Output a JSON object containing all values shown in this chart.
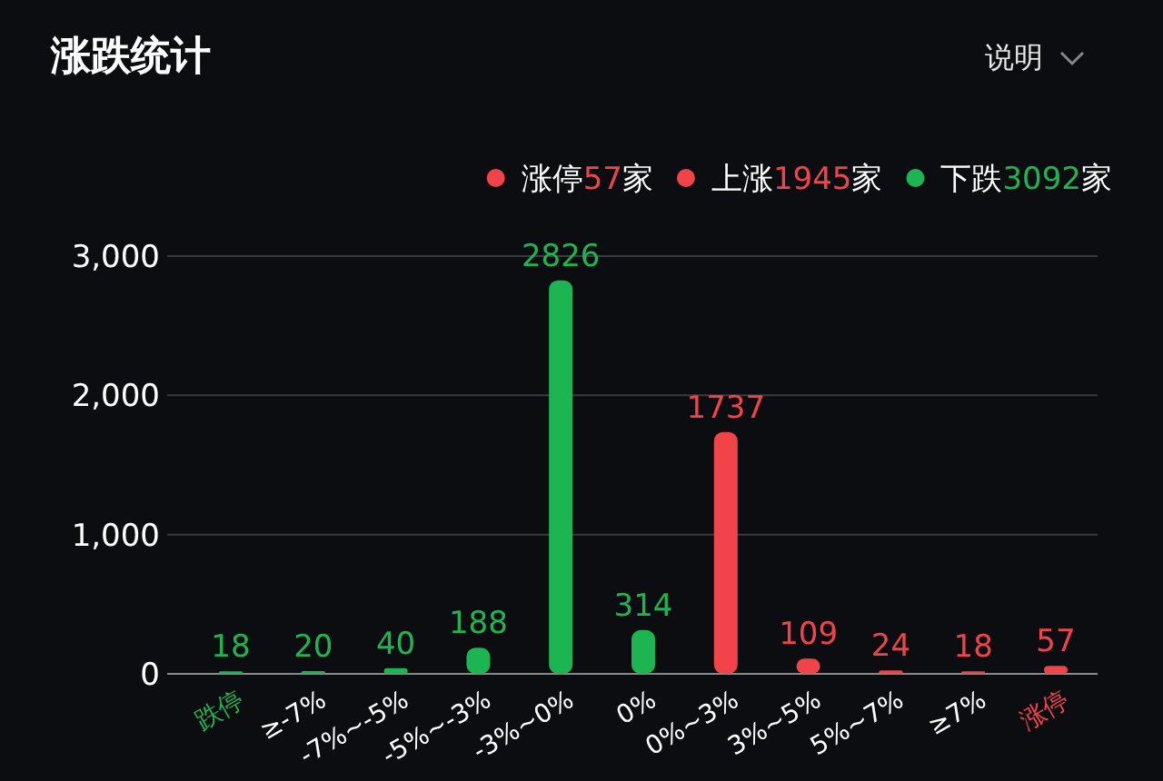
{
  "chart_data": {
    "type": "bar",
    "title": "涨跌统计",
    "annotations": [
      "说明"
    ],
    "categories": [
      "跌停",
      "≥-7%",
      "-7%~-5%",
      "-5%~-3%",
      "-3%~0%",
      "0%",
      "0%~3%",
      "3%~5%",
      "5%~7%",
      "≥7%",
      "涨停"
    ],
    "series": [
      {
        "name": "涨停57家",
        "color": "#f0434a",
        "values": [
          null,
          null,
          null,
          null,
          null,
          null,
          null,
          null,
          null,
          null,
          57
        ]
      },
      {
        "name": "上涨1945家",
        "color": "#f0434a",
        "values": [
          null,
          null,
          null,
          null,
          null,
          null,
          1737,
          109,
          24,
          18,
          null
        ]
      },
      {
        "name": "下跌3092家",
        "color": "#1db452",
        "values": [
          18,
          20,
          40,
          188,
          2826,
          null,
          null,
          null,
          null,
          null,
          null
        ]
      },
      {
        "color": "#1db452",
        "values": [
          null,
          null,
          null,
          null,
          null,
          314,
          null,
          null,
          null,
          null,
          null
        ]
      }
    ],
    "ylim": [
      0,
      3000
    ],
    "yticks": [
      {
        "value": 0,
        "label": "0"
      },
      {
        "value": 1000,
        "label": "1,000"
      },
      {
        "value": 2000,
        "label": "2,000"
      },
      {
        "value": 3000,
        "label": "3,000"
      }
    ],
    "grid": "y",
    "legend": "top right",
    "data_labels": true
  }
}
